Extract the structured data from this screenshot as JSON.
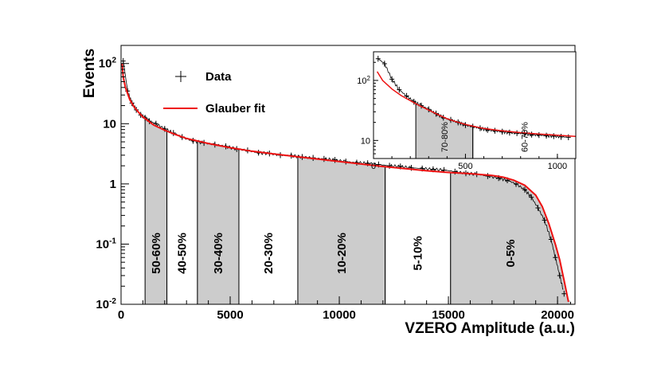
{
  "chart_data": {
    "type": "line",
    "xlabel": "VZERO Amplitude (a.u.)",
    "ylabel": "Events",
    "xlim": [
      0,
      20800
    ],
    "ylim": [
      0.01,
      200
    ],
    "yscale": "log",
    "x_ticks": [
      {
        "value": 0,
        "label": "0"
      },
      {
        "value": 5000,
        "label": "5000"
      },
      {
        "value": 10000,
        "label": "10000"
      },
      {
        "value": 15000,
        "label": "15000"
      },
      {
        "value": 20000,
        "label": "20000"
      }
    ],
    "y_ticks": [
      {
        "value": 0.01,
        "label": "10",
        "sup": "-2"
      },
      {
        "value": 0.1,
        "label": "10",
        "sup": "-1"
      },
      {
        "value": 1,
        "label": "1",
        "sup": ""
      },
      {
        "value": 10,
        "label": "10",
        "sup": ""
      },
      {
        "value": 100,
        "label": "10",
        "sup": "2"
      }
    ],
    "legend": {
      "position": "top-left",
      "entries": [
        {
          "name": "Data",
          "marker": "cross",
          "color": "#000000"
        },
        {
          "name": "Glauber fit",
          "marker": "line",
          "color": "#ee1111"
        }
      ]
    },
    "fit_curve": {
      "name": "Glauber fit",
      "color": "#ee1111",
      "x": [
        50,
        100,
        200,
        400,
        600,
        800,
        1000,
        1500,
        2000,
        2500,
        3000,
        4000,
        5000,
        6000,
        7000,
        8000,
        10000,
        12000,
        14000,
        15000,
        16000,
        17000,
        17500,
        18000,
        18500,
        19000,
        19300,
        19600,
        19900,
        20100,
        20300,
        20500
      ],
      "y": [
        100,
        60,
        40,
        25,
        19,
        15.5,
        13,
        9.5,
        7.8,
        6.6,
        5.7,
        4.7,
        4.0,
        3.5,
        3.15,
        2.85,
        2.35,
        1.95,
        1.65,
        1.55,
        1.48,
        1.38,
        1.3,
        1.15,
        0.95,
        0.65,
        0.42,
        0.22,
        0.1,
        0.055,
        0.025,
        0.011
      ]
    },
    "data_points": {
      "name": "Data",
      "color": "#000000",
      "x": [
        100,
        300,
        500,
        700,
        900,
        1100,
        1300,
        1600,
        2000,
        2400,
        2800,
        3300,
        3800,
        4300,
        4800,
        5300,
        5800,
        6300,
        6800,
        7300,
        7800,
        8300,
        8800,
        9300,
        9800,
        10300,
        10800,
        11300,
        11800,
        12300,
        12800,
        13300,
        13800,
        14300,
        14800,
        15300,
        15800,
        16300,
        16800,
        17300,
        17700,
        18100,
        18500,
        18800,
        19100,
        19400,
        19700,
        19900,
        20100,
        20300
      ],
      "y": [
        110,
        35,
        22,
        17,
        14,
        12.5,
        11,
        10,
        8.2,
        7,
        6,
        5.2,
        4.8,
        4.5,
        4.2,
        3.8,
        3.6,
        3.3,
        3.2,
        3.0,
        2.95,
        2.8,
        2.7,
        2.6,
        2.5,
        2.35,
        2.25,
        2.2,
        2.1,
        2.0,
        1.95,
        1.85,
        1.8,
        1.75,
        1.7,
        1.6,
        1.5,
        1.45,
        1.35,
        1.25,
        1.15,
        1.0,
        0.8,
        0.6,
        0.4,
        0.25,
        0.12,
        0.06,
        0.03,
        0.015
      ]
    },
    "centrality_bands": [
      {
        "label": "50-60%",
        "x0": 1100,
        "x1": 2100,
        "shaded": true
      },
      {
        "label": "40-50%",
        "x0": 2100,
        "x1": 3500,
        "shaded": false
      },
      {
        "label": "30-40%",
        "x0": 3500,
        "x1": 5400,
        "shaded": true
      },
      {
        "label": "20-30%",
        "x0": 5400,
        "x1": 8100,
        "shaded": false
      },
      {
        "label": "10-20%",
        "x0": 8100,
        "x1": 12100,
        "shaded": true
      },
      {
        "label": "5-10%",
        "x0": 12100,
        "x1": 15100,
        "shaded": false
      },
      {
        "label": "0-5%",
        "x0": 15100,
        "x1": 20600,
        "shaded": true
      }
    ],
    "inset": {
      "type": "line",
      "xlim": [
        0,
        1100
      ],
      "ylim": [
        5,
        300
      ],
      "yscale": "log",
      "x_ticks": [
        {
          "value": 0,
          "label": "0"
        },
        {
          "value": 500,
          "label": "500"
        },
        {
          "value": 1000,
          "label": "1000"
        }
      ],
      "y_ticks": [
        {
          "value": 10,
          "label": "10",
          "sup": ""
        },
        {
          "value": 100,
          "label": "10",
          "sup": "2"
        }
      ],
      "fit_curve": {
        "x": [
          20,
          50,
          100,
          150,
          200,
          250,
          300,
          350,
          400,
          450,
          500,
          550,
          600,
          700,
          800,
          900,
          1000,
          1100
        ],
        "y": [
          140,
          100,
          72,
          56,
          46,
          38,
          32,
          27,
          23,
          20.5,
          18.5,
          17,
          15.8,
          14.5,
          13.5,
          12.8,
          12.2,
          11.7
        ]
      },
      "data_points": {
        "x": [
          25,
          60,
          100,
          140,
          180,
          220,
          260,
          300,
          340,
          380,
          420,
          460,
          500,
          540,
          580,
          620,
          660,
          700,
          740,
          780,
          820,
          860,
          900,
          940,
          980,
          1020,
          1060
        ],
        "y": [
          230,
          190,
          105,
          70,
          55,
          44,
          38,
          33,
          28,
          24,
          22,
          20,
          18,
          17,
          16,
          15,
          14.5,
          14,
          13.5,
          13.2,
          13,
          12.5,
          12.3,
          12,
          11.8,
          11.5,
          11.3
        ]
      },
      "centrality_bands": [
        {
          "label": "70-80%",
          "x0": 230,
          "x1": 540,
          "shaded": true
        },
        {
          "label": "60-70%",
          "x0": 540,
          "x1": 1100,
          "shaded": false
        }
      ]
    }
  }
}
